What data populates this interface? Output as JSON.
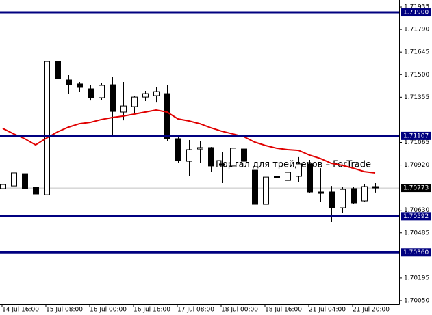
{
  "chart_data": {
    "type": "candlestick",
    "categories": [
      "14 Jul 16:00",
      null,
      null,
      null,
      "15 Jul 08:00",
      null,
      null,
      null,
      "16 Jul 00:00",
      null,
      null,
      null,
      "16 Jul 16:00",
      null,
      null,
      null,
      "17 Jul 08:00",
      null,
      null,
      null,
      "18 Jul 00:00",
      null,
      null,
      null,
      "18 Jul 16:00",
      null,
      null,
      null,
      "21 Jul 04:00",
      null,
      null,
      null,
      "21 Jul 20:00",
      null,
      null
    ],
    "open": [
      1.70769,
      1.70786,
      1.70865,
      1.70778,
      1.70729,
      1.71584,
      1.71466,
      1.7144,
      1.71409,
      1.71352,
      1.71435,
      1.7126,
      1.71295,
      1.71356,
      1.71365,
      1.71378,
      1.71089,
      1.70944,
      1.71023,
      1.71032,
      1.70927,
      1.70914,
      1.71023,
      1.70887,
      1.70668,
      1.70848,
      1.70821,
      1.70848,
      1.70927,
      1.70747,
      1.70747,
      1.70646,
      1.70769,
      1.7069,
      1.70782
    ],
    "high": [
      1.70817,
      1.70892,
      1.70874,
      1.70848,
      1.7165,
      1.71891,
      1.71497,
      1.71453,
      1.71431,
      1.71444,
      1.71488,
      1.71453,
      1.71365,
      1.71396,
      1.71418,
      1.71435,
      1.71102,
      1.7108,
      1.71076,
      1.71036,
      1.71005,
      1.71093,
      1.71168,
      1.70927,
      1.70905,
      1.70883,
      1.70935,
      1.70971,
      1.70953,
      1.709,
      1.70786,
      1.70782,
      1.70782,
      1.70795,
      1.70804
    ],
    "low": [
      1.70699,
      1.70773,
      1.7076,
      1.70594,
      1.70664,
      1.71462,
      1.71374,
      1.71391,
      1.71334,
      1.71339,
      1.71115,
      1.71207,
      1.71251,
      1.7133,
      1.71321,
      1.71076,
      1.70935,
      1.70848,
      1.70935,
      1.70874,
      1.70804,
      1.709,
      1.70935,
      1.70361,
      1.70655,
      1.70773,
      1.70738,
      1.70813,
      1.70738,
      1.70681,
      1.70554,
      1.70615,
      1.70668,
      1.70681,
      1.70743
    ],
    "close": [
      1.70795,
      1.7087,
      1.70769,
      1.70734,
      1.71584,
      1.71475,
      1.71435,
      1.71418,
      1.71352,
      1.71431,
      1.71264,
      1.71299,
      1.71356,
      1.71378,
      1.71391,
      1.71089,
      1.70949,
      1.71019,
      1.71032,
      1.70914,
      1.70918,
      1.71028,
      1.70944,
      1.70668,
      1.70843,
      1.70839,
      1.70874,
      1.70927,
      1.70747,
      1.70738,
      1.70646,
      1.70764,
      1.70677,
      1.70782,
      1.70773
    ],
    "up_color": "#ffffff",
    "down_color": "#000000",
    "edge_color": "#000000",
    "moving_average": {
      "color": "#e00000",
      "values": [
        1.71155,
        1.7112,
        1.71089,
        1.71049,
        1.71093,
        1.71133,
        1.71163,
        1.71185,
        1.71194,
        1.71212,
        1.71225,
        1.71234,
        1.71247,
        1.7126,
        1.71273,
        1.7126,
        1.71216,
        1.71203,
        1.71185,
        1.71159,
        1.71137,
        1.7112,
        1.71102,
        1.71067,
        1.71045,
        1.71028,
        1.71019,
        1.71014,
        1.70984,
        1.70962,
        1.70931,
        1.70918,
        1.709,
        1.70878,
        1.7087
      ]
    },
    "levels": {
      "color": "#000080",
      "values": [
        {
          "value": 1.719,
          "label": "1.71900"
        },
        {
          "value": 1.71107,
          "label": "1.71107"
        },
        {
          "value": 1.70592,
          "label": "1.70592"
        },
        {
          "value": 1.7036,
          "label": "1.70360"
        }
      ]
    },
    "last_price": 1.70773,
    "watermark": "Портал для трейдеров – ForTrade",
    "ylim": [
      1.70028,
      1.71979
    ],
    "yticks": [
      {
        "value": 1.71935,
        "label": "1.71935"
      },
      {
        "value": 1.7179,
        "label": "1.71790"
      },
      {
        "value": 1.71645,
        "label": "1.71645"
      },
      {
        "value": 1.715,
        "label": "1.71500"
      },
      {
        "value": 1.71355,
        "label": "1.71355"
      },
      {
        "value": 1.71065,
        "label": "1.71065"
      },
      {
        "value": 1.7092,
        "label": "1.70920"
      },
      {
        "value": 1.7063,
        "label": "1.70630"
      },
      {
        "value": 1.70485,
        "label": "1.70485"
      },
      {
        "value": 1.70195,
        "label": "1.70195"
      },
      {
        "value": 1.7005,
        "label": "1.70050"
      }
    ],
    "grid": false
  }
}
